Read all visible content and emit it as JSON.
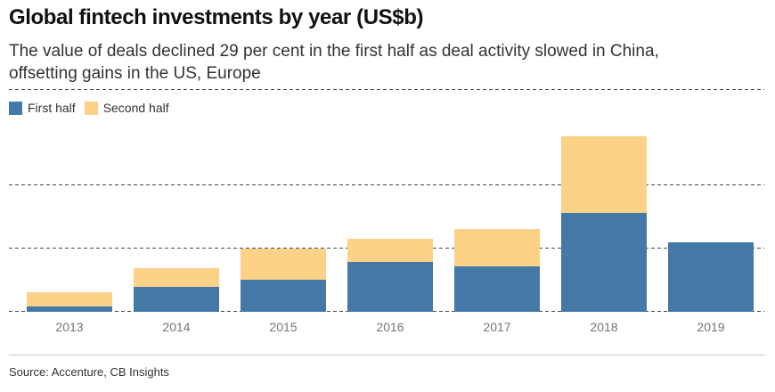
{
  "header": {
    "title": "Global fintech investments by year (US$b)",
    "subtitle_line1": "The value of deals declined 29 per cent in the first half as deal activity slowed in China,",
    "subtitle_line2": "offsetting gains in the US, Europe"
  },
  "chart_data": {
    "type": "bar",
    "stacked": true,
    "title": "Global fintech investments by year (US$b)",
    "subtitle": "The value of deals declined 29 per cent in the first half as deal activity slowed in China, offsetting gains in the US, Europe",
    "categories": [
      "2013",
      "2014",
      "2015",
      "2016",
      "2017",
      "2018",
      "2019"
    ],
    "series": [
      {
        "name": "First half",
        "color": "#4478a6",
        "values": [
          1.8,
          7.8,
          10,
          15.7,
          14.2,
          31.2,
          22
        ]
      },
      {
        "name": "Second half",
        "color": "#fcd188",
        "values": [
          4.5,
          6,
          10,
          7.4,
          12,
          24.1,
          0
        ]
      }
    ],
    "xlabel": "",
    "ylabel": "",
    "ylim": [
      0,
      69.4
    ],
    "gridline_values": [
      20,
      40
    ],
    "gridlines_dashed": true,
    "gridline_labels_visible": false,
    "legend_position": "top-left"
  },
  "footer": {
    "source": "Source: Accenture, CB Insights"
  }
}
